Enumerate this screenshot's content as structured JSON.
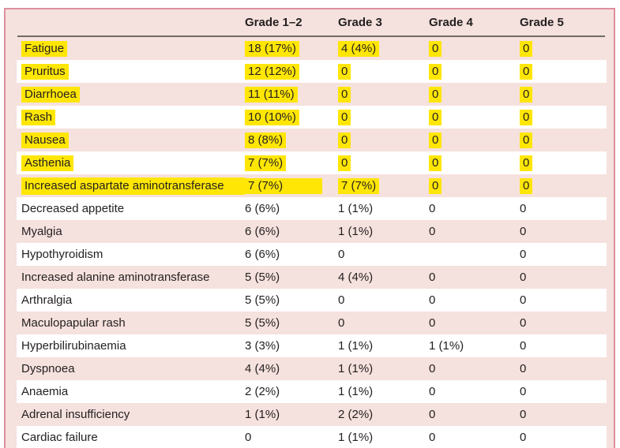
{
  "table": {
    "columns": {
      "label": "",
      "grades": [
        "Grade 1–2",
        "Grade 3",
        "Grade 4",
        "Grade 5"
      ]
    },
    "rows": [
      {
        "label": "Fatigue",
        "values": [
          "18 (17%)",
          "4 (4%)",
          "0",
          "0"
        ],
        "highlighted": true
      },
      {
        "label": "Pruritus",
        "values": [
          "12 (12%)",
          "0",
          "0",
          "0"
        ],
        "highlighted": true
      },
      {
        "label": "Diarrhoea",
        "values": [
          "11 (11%)",
          "0",
          "0",
          "0"
        ],
        "highlighted": true
      },
      {
        "label": "Rash",
        "values": [
          "10 (10%)",
          "0",
          "0",
          "0"
        ],
        "highlighted": true
      },
      {
        "label": "Nausea",
        "values": [
          "8 (8%)",
          "0",
          "0",
          "0"
        ],
        "highlighted": true
      },
      {
        "label": "Asthenia",
        "values": [
          "7 (7%)",
          "0",
          "0",
          "0"
        ],
        "highlighted": true
      },
      {
        "label": "Increased aspartate aminotransferase",
        "values": [
          "7 (7%)",
          "7 (7%)",
          "0",
          "0"
        ],
        "highlighted": true,
        "highlight_extended": true
      },
      {
        "label": "Decreased appetite",
        "values": [
          "6 (6%)",
          "1 (1%)",
          "0",
          "0"
        ],
        "highlighted": false
      },
      {
        "label": "Myalgia",
        "values": [
          "6 (6%)",
          "1 (1%)",
          "0",
          "0"
        ],
        "highlighted": false
      },
      {
        "label": "Hypothyroidism",
        "values": [
          "6 (6%)",
          "0",
          "",
          "0"
        ],
        "highlighted": false
      },
      {
        "label": "Increased alanine aminotransferase",
        "values": [
          "5 (5%)",
          "4 (4%)",
          "0",
          "0"
        ],
        "highlighted": false
      },
      {
        "label": "Arthralgia",
        "values": [
          "5 (5%)",
          "0",
          "0",
          "0"
        ],
        "highlighted": false
      },
      {
        "label": "Maculopapular rash",
        "values": [
          "5 (5%)",
          "0",
          "0",
          "0"
        ],
        "highlighted": false
      },
      {
        "label": "Hyperbilirubinaemia",
        "values": [
          "3 (3%)",
          "1 (1%)",
          "1 (1%)",
          "0"
        ],
        "highlighted": false
      },
      {
        "label": "Dyspnoea",
        "values": [
          "4 (4%)",
          "1 (1%)",
          "0",
          "0"
        ],
        "highlighted": false
      },
      {
        "label": "Anaemia",
        "values": [
          "2 (2%)",
          "1 (1%)",
          "0",
          "0"
        ],
        "highlighted": false
      },
      {
        "label": "Adrenal insufficiency",
        "values": [
          "1 (1%)",
          "2 (2%)",
          "0",
          "0"
        ],
        "highlighted": false
      },
      {
        "label": "Cardiac failure",
        "values": [
          "0",
          "1 (1%)",
          "0",
          "0"
        ],
        "highlighted": false
      }
    ]
  },
  "colors": {
    "stripe_pink": "#f5e1dd",
    "frame_red": "#df8f9b",
    "header_rule": "#6e6a67",
    "highlight_yellow": "#ffe605",
    "text": "#231f20"
  }
}
